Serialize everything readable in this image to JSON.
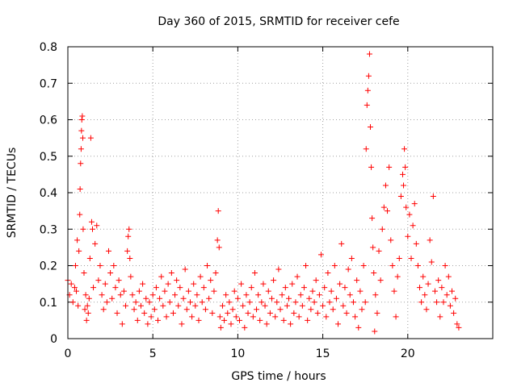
{
  "chart_data": {
    "type": "scatter",
    "title": "Day 360 of 2015, SRMTID for receiver cefe",
    "xlabel": "GPS time / hours",
    "ylabel": "SRMTID / TECUs",
    "xlim": [
      0,
      25
    ],
    "ylim": [
      0,
      0.8
    ],
    "xticks": [
      0,
      5,
      10,
      15,
      20
    ],
    "xtick_labels": [
      "0",
      "5",
      "10",
      "15",
      "20"
    ],
    "yticks": [
      0,
      0.1,
      0.2,
      0.3,
      0.4,
      0.5,
      0.6,
      0.7,
      0.8
    ],
    "ytick_labels": [
      "0",
      "0.1",
      "0.2",
      "0.3",
      "0.4",
      "0.5",
      "0.6",
      "0.7",
      "0.8"
    ],
    "grid": true,
    "marker": "+",
    "color": "#ff0000",
    "series": [
      {
        "name": "SRMTID",
        "points": [
          [
            0.0,
            0.16
          ],
          [
            0.1,
            0.12
          ],
          [
            0.2,
            0.15
          ],
          [
            0.3,
            0.1
          ],
          [
            0.4,
            0.14
          ],
          [
            0.45,
            0.2
          ],
          [
            0.5,
            0.13
          ],
          [
            0.55,
            0.27
          ],
          [
            0.6,
            0.09
          ],
          [
            0.65,
            0.24
          ],
          [
            0.7,
            0.34
          ],
          [
            0.72,
            0.41
          ],
          [
            0.75,
            0.48
          ],
          [
            0.78,
            0.52
          ],
          [
            0.8,
            0.57
          ],
          [
            0.82,
            0.6
          ],
          [
            0.85,
            0.61
          ],
          [
            0.88,
            0.55
          ],
          [
            0.9,
            0.3
          ],
          [
            0.95,
            0.18
          ],
          [
            1.0,
            0.08
          ],
          [
            1.05,
            0.12
          ],
          [
            1.1,
            0.05
          ],
          [
            1.15,
            0.09
          ],
          [
            1.2,
            0.07
          ],
          [
            1.25,
            0.11
          ],
          [
            1.3,
            0.22
          ],
          [
            1.35,
            0.55
          ],
          [
            1.4,
            0.32
          ],
          [
            1.45,
            0.3
          ],
          [
            1.5,
            0.14
          ],
          [
            1.6,
            0.26
          ],
          [
            1.7,
            0.31
          ],
          [
            1.8,
            0.16
          ],
          [
            1.9,
            0.2
          ],
          [
            2.0,
            0.12
          ],
          [
            2.1,
            0.08
          ],
          [
            2.2,
            0.15
          ],
          [
            2.3,
            0.1
          ],
          [
            2.4,
            0.24
          ],
          [
            2.5,
            0.18
          ],
          [
            2.6,
            0.11
          ],
          [
            2.7,
            0.2
          ],
          [
            2.8,
            0.14
          ],
          [
            2.9,
            0.07
          ],
          [
            3.0,
            0.16
          ],
          [
            3.1,
            0.12
          ],
          [
            3.2,
            0.04
          ],
          [
            3.3,
            0.13
          ],
          [
            3.4,
            0.09
          ],
          [
            3.5,
            0.24
          ],
          [
            3.55,
            0.28
          ],
          [
            3.6,
            0.3
          ],
          [
            3.65,
            0.22
          ],
          [
            3.7,
            0.17
          ],
          [
            3.8,
            0.12
          ],
          [
            3.9,
            0.08
          ],
          [
            4.0,
            0.1
          ],
          [
            4.1,
            0.05
          ],
          [
            4.2,
            0.13
          ],
          [
            4.3,
            0.09
          ],
          [
            4.4,
            0.15
          ],
          [
            4.5,
            0.07
          ],
          [
            4.6,
            0.11
          ],
          [
            4.7,
            0.04
          ],
          [
            4.8,
            0.1
          ],
          [
            4.9,
            0.06
          ],
          [
            5.0,
            0.12
          ],
          [
            5.1,
            0.08
          ],
          [
            5.2,
            0.14
          ],
          [
            5.3,
            0.05
          ],
          [
            5.4,
            0.11
          ],
          [
            5.5,
            0.17
          ],
          [
            5.6,
            0.09
          ],
          [
            5.7,
            0.13
          ],
          [
            5.8,
            0.06
          ],
          [
            5.9,
            0.15
          ],
          [
            6.0,
            0.1
          ],
          [
            6.1,
            0.18
          ],
          [
            6.2,
            0.07
          ],
          [
            6.3,
            0.12
          ],
          [
            6.4,
            0.16
          ],
          [
            6.5,
            0.09
          ],
          [
            6.6,
            0.14
          ],
          [
            6.7,
            0.04
          ],
          [
            6.8,
            0.11
          ],
          [
            6.9,
            0.19
          ],
          [
            7.0,
            0.08
          ],
          [
            7.1,
            0.13
          ],
          [
            7.2,
            0.1
          ],
          [
            7.3,
            0.06
          ],
          [
            7.4,
            0.15
          ],
          [
            7.5,
            0.09
          ],
          [
            7.6,
            0.12
          ],
          [
            7.7,
            0.05
          ],
          [
            7.8,
            0.17
          ],
          [
            7.9,
            0.1
          ],
          [
            8.0,
            0.14
          ],
          [
            8.1,
            0.08
          ],
          [
            8.2,
            0.2
          ],
          [
            8.3,
            0.11
          ],
          [
            8.4,
            0.16
          ],
          [
            8.5,
            0.07
          ],
          [
            8.6,
            0.13
          ],
          [
            8.7,
            0.18
          ],
          [
            8.8,
            0.27
          ],
          [
            8.85,
            0.35
          ],
          [
            8.9,
            0.25
          ],
          [
            8.95,
            0.06
          ],
          [
            9.0,
            0.03
          ],
          [
            9.1,
            0.09
          ],
          [
            9.2,
            0.05
          ],
          [
            9.3,
            0.12
          ],
          [
            9.4,
            0.07
          ],
          [
            9.5,
            0.1
          ],
          [
            9.6,
            0.04
          ],
          [
            9.7,
            0.08
          ],
          [
            9.8,
            0.13
          ],
          [
            9.9,
            0.06
          ],
          [
            10.0,
            0.11
          ],
          [
            10.1,
            0.05
          ],
          [
            10.2,
            0.15
          ],
          [
            10.3,
            0.09
          ],
          [
            10.4,
            0.03
          ],
          [
            10.5,
            0.12
          ],
          [
            10.6,
            0.07
          ],
          [
            10.7,
            0.1
          ],
          [
            10.8,
            0.14
          ],
          [
            10.9,
            0.06
          ],
          [
            11.0,
            0.18
          ],
          [
            11.1,
            0.08
          ],
          [
            11.2,
            0.12
          ],
          [
            11.3,
            0.05
          ],
          [
            11.4,
            0.1
          ],
          [
            11.5,
            0.15
          ],
          [
            11.6,
            0.09
          ],
          [
            11.7,
            0.04
          ],
          [
            11.8,
            0.13
          ],
          [
            11.9,
            0.07
          ],
          [
            12.0,
            0.11
          ],
          [
            12.1,
            0.16
          ],
          [
            12.2,
            0.06
          ],
          [
            12.3,
            0.1
          ],
          [
            12.4,
            0.19
          ],
          [
            12.5,
            0.08
          ],
          [
            12.6,
            0.12
          ],
          [
            12.7,
            0.05
          ],
          [
            12.8,
            0.14
          ],
          [
            12.9,
            0.09
          ],
          [
            13.0,
            0.11
          ],
          [
            13.1,
            0.04
          ],
          [
            13.2,
            0.15
          ],
          [
            13.3,
            0.07
          ],
          [
            13.4,
            0.1
          ],
          [
            13.5,
            0.17
          ],
          [
            13.6,
            0.06
          ],
          [
            13.7,
            0.12
          ],
          [
            13.8,
            0.09
          ],
          [
            13.9,
            0.14
          ],
          [
            14.0,
            0.2
          ],
          [
            14.1,
            0.05
          ],
          [
            14.2,
            0.11
          ],
          [
            14.3,
            0.08
          ],
          [
            14.4,
            0.13
          ],
          [
            14.5,
            0.1
          ],
          [
            14.6,
            0.16
          ],
          [
            14.7,
            0.07
          ],
          [
            14.8,
            0.12
          ],
          [
            14.9,
            0.23
          ],
          [
            15.0,
            0.09
          ],
          [
            15.1,
            0.14
          ],
          [
            15.2,
            0.06
          ],
          [
            15.3,
            0.18
          ],
          [
            15.4,
            0.1
          ],
          [
            15.5,
            0.13
          ],
          [
            15.6,
            0.08
          ],
          [
            15.7,
            0.2
          ],
          [
            15.8,
            0.11
          ],
          [
            15.9,
            0.04
          ],
          [
            16.0,
            0.15
          ],
          [
            16.1,
            0.26
          ],
          [
            16.2,
            0.09
          ],
          [
            16.3,
            0.14
          ],
          [
            16.4,
            0.07
          ],
          [
            16.5,
            0.19
          ],
          [
            16.6,
            0.12
          ],
          [
            16.7,
            0.22
          ],
          [
            16.8,
            0.1
          ],
          [
            16.9,
            0.06
          ],
          [
            17.0,
            0.16
          ],
          [
            17.1,
            0.03
          ],
          [
            17.2,
            0.13
          ],
          [
            17.3,
            0.08
          ],
          [
            17.4,
            0.2
          ],
          [
            17.5,
            0.1
          ],
          [
            17.55,
            0.52
          ],
          [
            17.6,
            0.64
          ],
          [
            17.65,
            0.68
          ],
          [
            17.7,
            0.72
          ],
          [
            17.75,
            0.78
          ],
          [
            17.8,
            0.58
          ],
          [
            17.85,
            0.47
          ],
          [
            17.9,
            0.33
          ],
          [
            17.95,
            0.25
          ],
          [
            18.0,
            0.18
          ],
          [
            18.05,
            0.02
          ],
          [
            18.1,
            0.12
          ],
          [
            18.2,
            0.07
          ],
          [
            18.3,
            0.24
          ],
          [
            18.4,
            0.16
          ],
          [
            18.5,
            0.3
          ],
          [
            18.6,
            0.36
          ],
          [
            18.7,
            0.42
          ],
          [
            18.8,
            0.35
          ],
          [
            18.9,
            0.47
          ],
          [
            19.0,
            0.27
          ],
          [
            19.1,
            0.2
          ],
          [
            19.2,
            0.13
          ],
          [
            19.3,
            0.06
          ],
          [
            19.4,
            0.17
          ],
          [
            19.5,
            0.22
          ],
          [
            19.6,
            0.39
          ],
          [
            19.7,
            0.45
          ],
          [
            19.75,
            0.42
          ],
          [
            19.8,
            0.52
          ],
          [
            19.85,
            0.47
          ],
          [
            19.9,
            0.36
          ],
          [
            20.0,
            0.28
          ],
          [
            20.1,
            0.34
          ],
          [
            20.2,
            0.22
          ],
          [
            20.3,
            0.31
          ],
          [
            20.4,
            0.37
          ],
          [
            20.5,
            0.26
          ],
          [
            20.6,
            0.2
          ],
          [
            20.7,
            0.14
          ],
          [
            20.8,
            0.1
          ],
          [
            20.9,
            0.17
          ],
          [
            21.0,
            0.12
          ],
          [
            21.1,
            0.08
          ],
          [
            21.2,
            0.15
          ],
          [
            21.3,
            0.27
          ],
          [
            21.4,
            0.21
          ],
          [
            21.5,
            0.39
          ],
          [
            21.6,
            0.13
          ],
          [
            21.7,
            0.1
          ],
          [
            21.8,
            0.16
          ],
          [
            21.9,
            0.06
          ],
          [
            22.0,
            0.14
          ],
          [
            22.1,
            0.1
          ],
          [
            22.2,
            0.2
          ],
          [
            22.3,
            0.12
          ],
          [
            22.4,
            0.17
          ],
          [
            22.5,
            0.09
          ],
          [
            22.6,
            0.13
          ],
          [
            22.7,
            0.07
          ],
          [
            22.8,
            0.11
          ],
          [
            22.9,
            0.04
          ],
          [
            23.0,
            0.03
          ]
        ]
      }
    ]
  }
}
